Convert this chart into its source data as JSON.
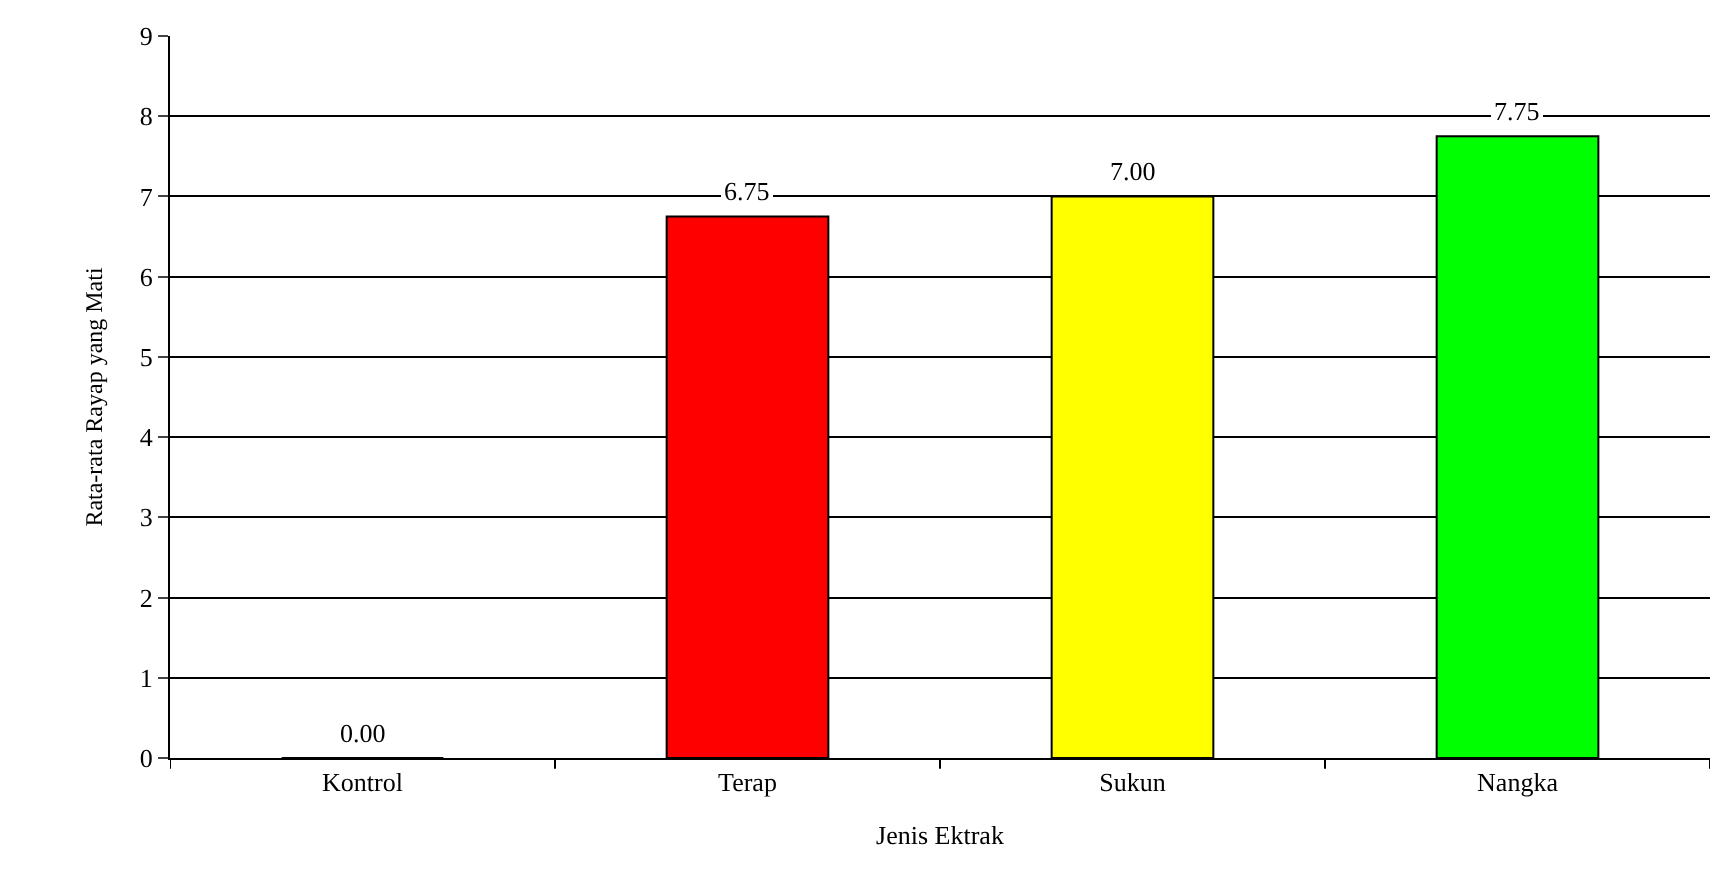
{
  "chart_data": {
    "type": "bar",
    "xlabel": "Jenis Ektrak",
    "ylabel": "Rata-rata Rayap yang Mati",
    "categories": [
      "Kontrol",
      "Terap",
      "Sukun",
      "Nangka"
    ],
    "values": [
      0,
      6.75,
      7.0,
      7.75
    ],
    "colors": [
      "#ffffff",
      "#ff0000",
      "#ffff00",
      "#00ff00"
    ],
    "value_labels": [
      "0.00",
      "6.75",
      "7.00",
      "7.75"
    ],
    "ylim": [
      0,
      9
    ],
    "yticks": [
      0,
      1,
      2,
      3,
      4,
      5,
      6,
      7,
      8,
      9
    ],
    "grid": "y"
  }
}
